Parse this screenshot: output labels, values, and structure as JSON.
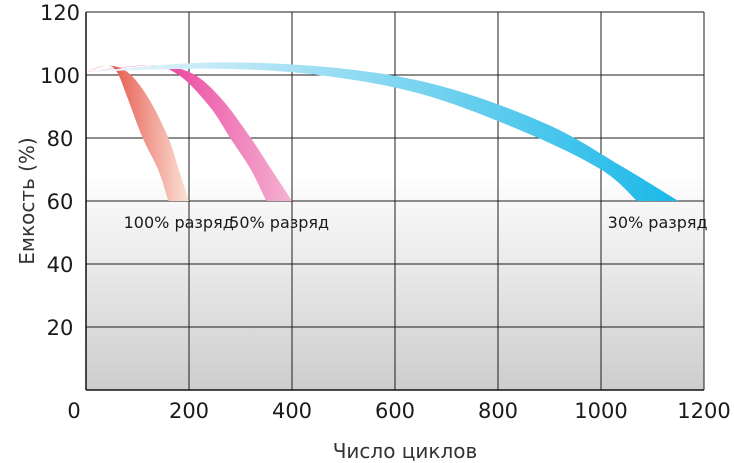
{
  "chart_data": {
    "type": "area",
    "title": "",
    "xlabel": "Число циклов",
    "ylabel": "Емкость (%)",
    "xlim": [
      0,
      1200
    ],
    "ylim": [
      0,
      120
    ],
    "x_ticks": [
      0,
      200,
      400,
      600,
      800,
      1000,
      1200
    ],
    "y_ticks": [
      20,
      40,
      60,
      80,
      100,
      120
    ],
    "grid": true,
    "legend": "labels under each curve",
    "series": [
      {
        "name": "100% разряд",
        "color_start": "#e02b1f",
        "color_end": "#fbe3d8",
        "upper": [
          [
            0,
            101
          ],
          [
            40,
            103
          ],
          [
            80,
            101
          ],
          [
            120,
            93
          ],
          [
            160,
            80
          ],
          [
            180,
            70
          ],
          [
            200,
            60
          ]
        ],
        "lower": [
          [
            0,
            101
          ],
          [
            40,
            103
          ],
          [
            60,
            101
          ],
          [
            80,
            93
          ],
          [
            110,
            80
          ],
          [
            140,
            70
          ],
          [
            160,
            60
          ]
        ]
      },
      {
        "name": "50% разряд",
        "color_start": "#e4007f",
        "color_end": "#f5b3d3",
        "upper": [
          [
            0,
            101
          ],
          [
            120,
            103
          ],
          [
            200,
            101
          ],
          [
            260,
            93
          ],
          [
            320,
            80
          ],
          [
            360,
            70
          ],
          [
            400,
            60
          ]
        ],
        "lower": [
          [
            0,
            101
          ],
          [
            120,
            103
          ],
          [
            180,
            100
          ],
          [
            240,
            90
          ],
          [
            280,
            80
          ],
          [
            320,
            70
          ],
          [
            350,
            60
          ]
        ]
      },
      {
        "name": "30% разряд",
        "color_start": "#f2f7fb",
        "color_end": "#1ab8e8",
        "upper": [
          [
            0,
            101
          ],
          [
            250,
            104
          ],
          [
            500,
            102
          ],
          [
            700,
            96
          ],
          [
            900,
            84
          ],
          [
            1040,
            71
          ],
          [
            1150,
            60
          ]
        ],
        "lower": [
          [
            0,
            101
          ],
          [
            250,
            102
          ],
          [
            450,
            100
          ],
          [
            650,
            94
          ],
          [
            850,
            82
          ],
          [
            1000,
            70
          ],
          [
            1070,
            60
          ]
        ]
      }
    ]
  }
}
